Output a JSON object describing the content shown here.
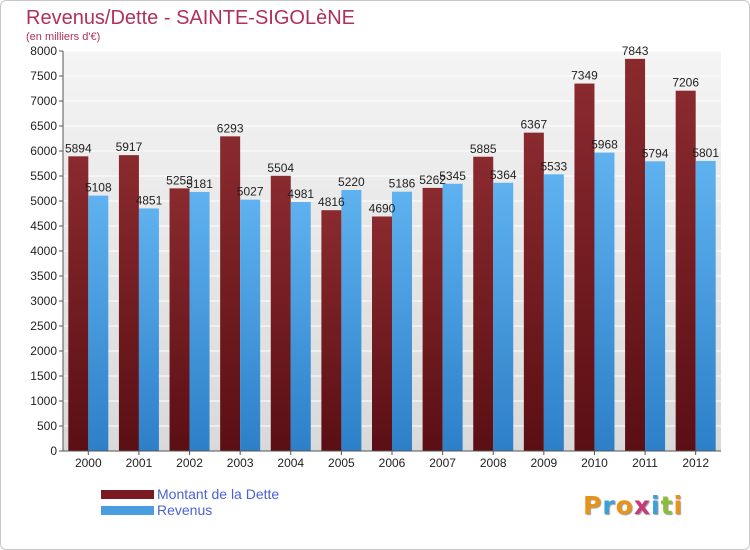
{
  "header": {
    "title": "Revenus/Dette - SAINTE-SIGOLèNE",
    "subtitle": "(en milliers d'€)"
  },
  "legend": {
    "items": [
      {
        "label": "Montant de la Dette",
        "color": "#7a1a22"
      },
      {
        "label": "Revenus",
        "color": "#4a9ee0"
      }
    ]
  },
  "logo": {
    "text": "Proxiti"
  },
  "colors": {
    "debt_top": "#8a2a2e",
    "debt_bottom": "#5a0f14",
    "revenue_top": "#5fb2ef",
    "revenue_bottom": "#2d7fc8",
    "plot_bg_top": "#f4f4f4",
    "plot_bg_bottom": "#d9d9d9",
    "grid": "#ffffff"
  },
  "chart_data": {
    "type": "bar",
    "title": "Revenus/Dette - SAINTE-SIGOLèNE",
    "subtitle": "(en milliers d'€)",
    "xlabel": "",
    "ylabel": "",
    "ylim": [
      0,
      8000
    ],
    "yticks": [
      0,
      500,
      1000,
      1500,
      2000,
      2500,
      3000,
      3500,
      4000,
      4500,
      5000,
      5500,
      6000,
      6500,
      7000,
      7500,
      8000
    ],
    "grid": true,
    "legend_position": "bottom-left",
    "categories": [
      "2000",
      "2001",
      "2002",
      "2003",
      "2004",
      "2005",
      "2006",
      "2007",
      "2008",
      "2009",
      "2010",
      "2011",
      "2012"
    ],
    "series": [
      {
        "name": "Montant de la Dette",
        "values": [
          5894,
          5917,
          5253,
          6293,
          5504,
          4816,
          4690,
          5262,
          5885,
          6367,
          7349,
          7843,
          7206
        ]
      },
      {
        "name": "Revenus",
        "values": [
          5108,
          4851,
          5181,
          5027,
          4981,
          5220,
          5186,
          5345,
          5364,
          5533,
          5968,
          5794,
          5801
        ]
      }
    ]
  }
}
